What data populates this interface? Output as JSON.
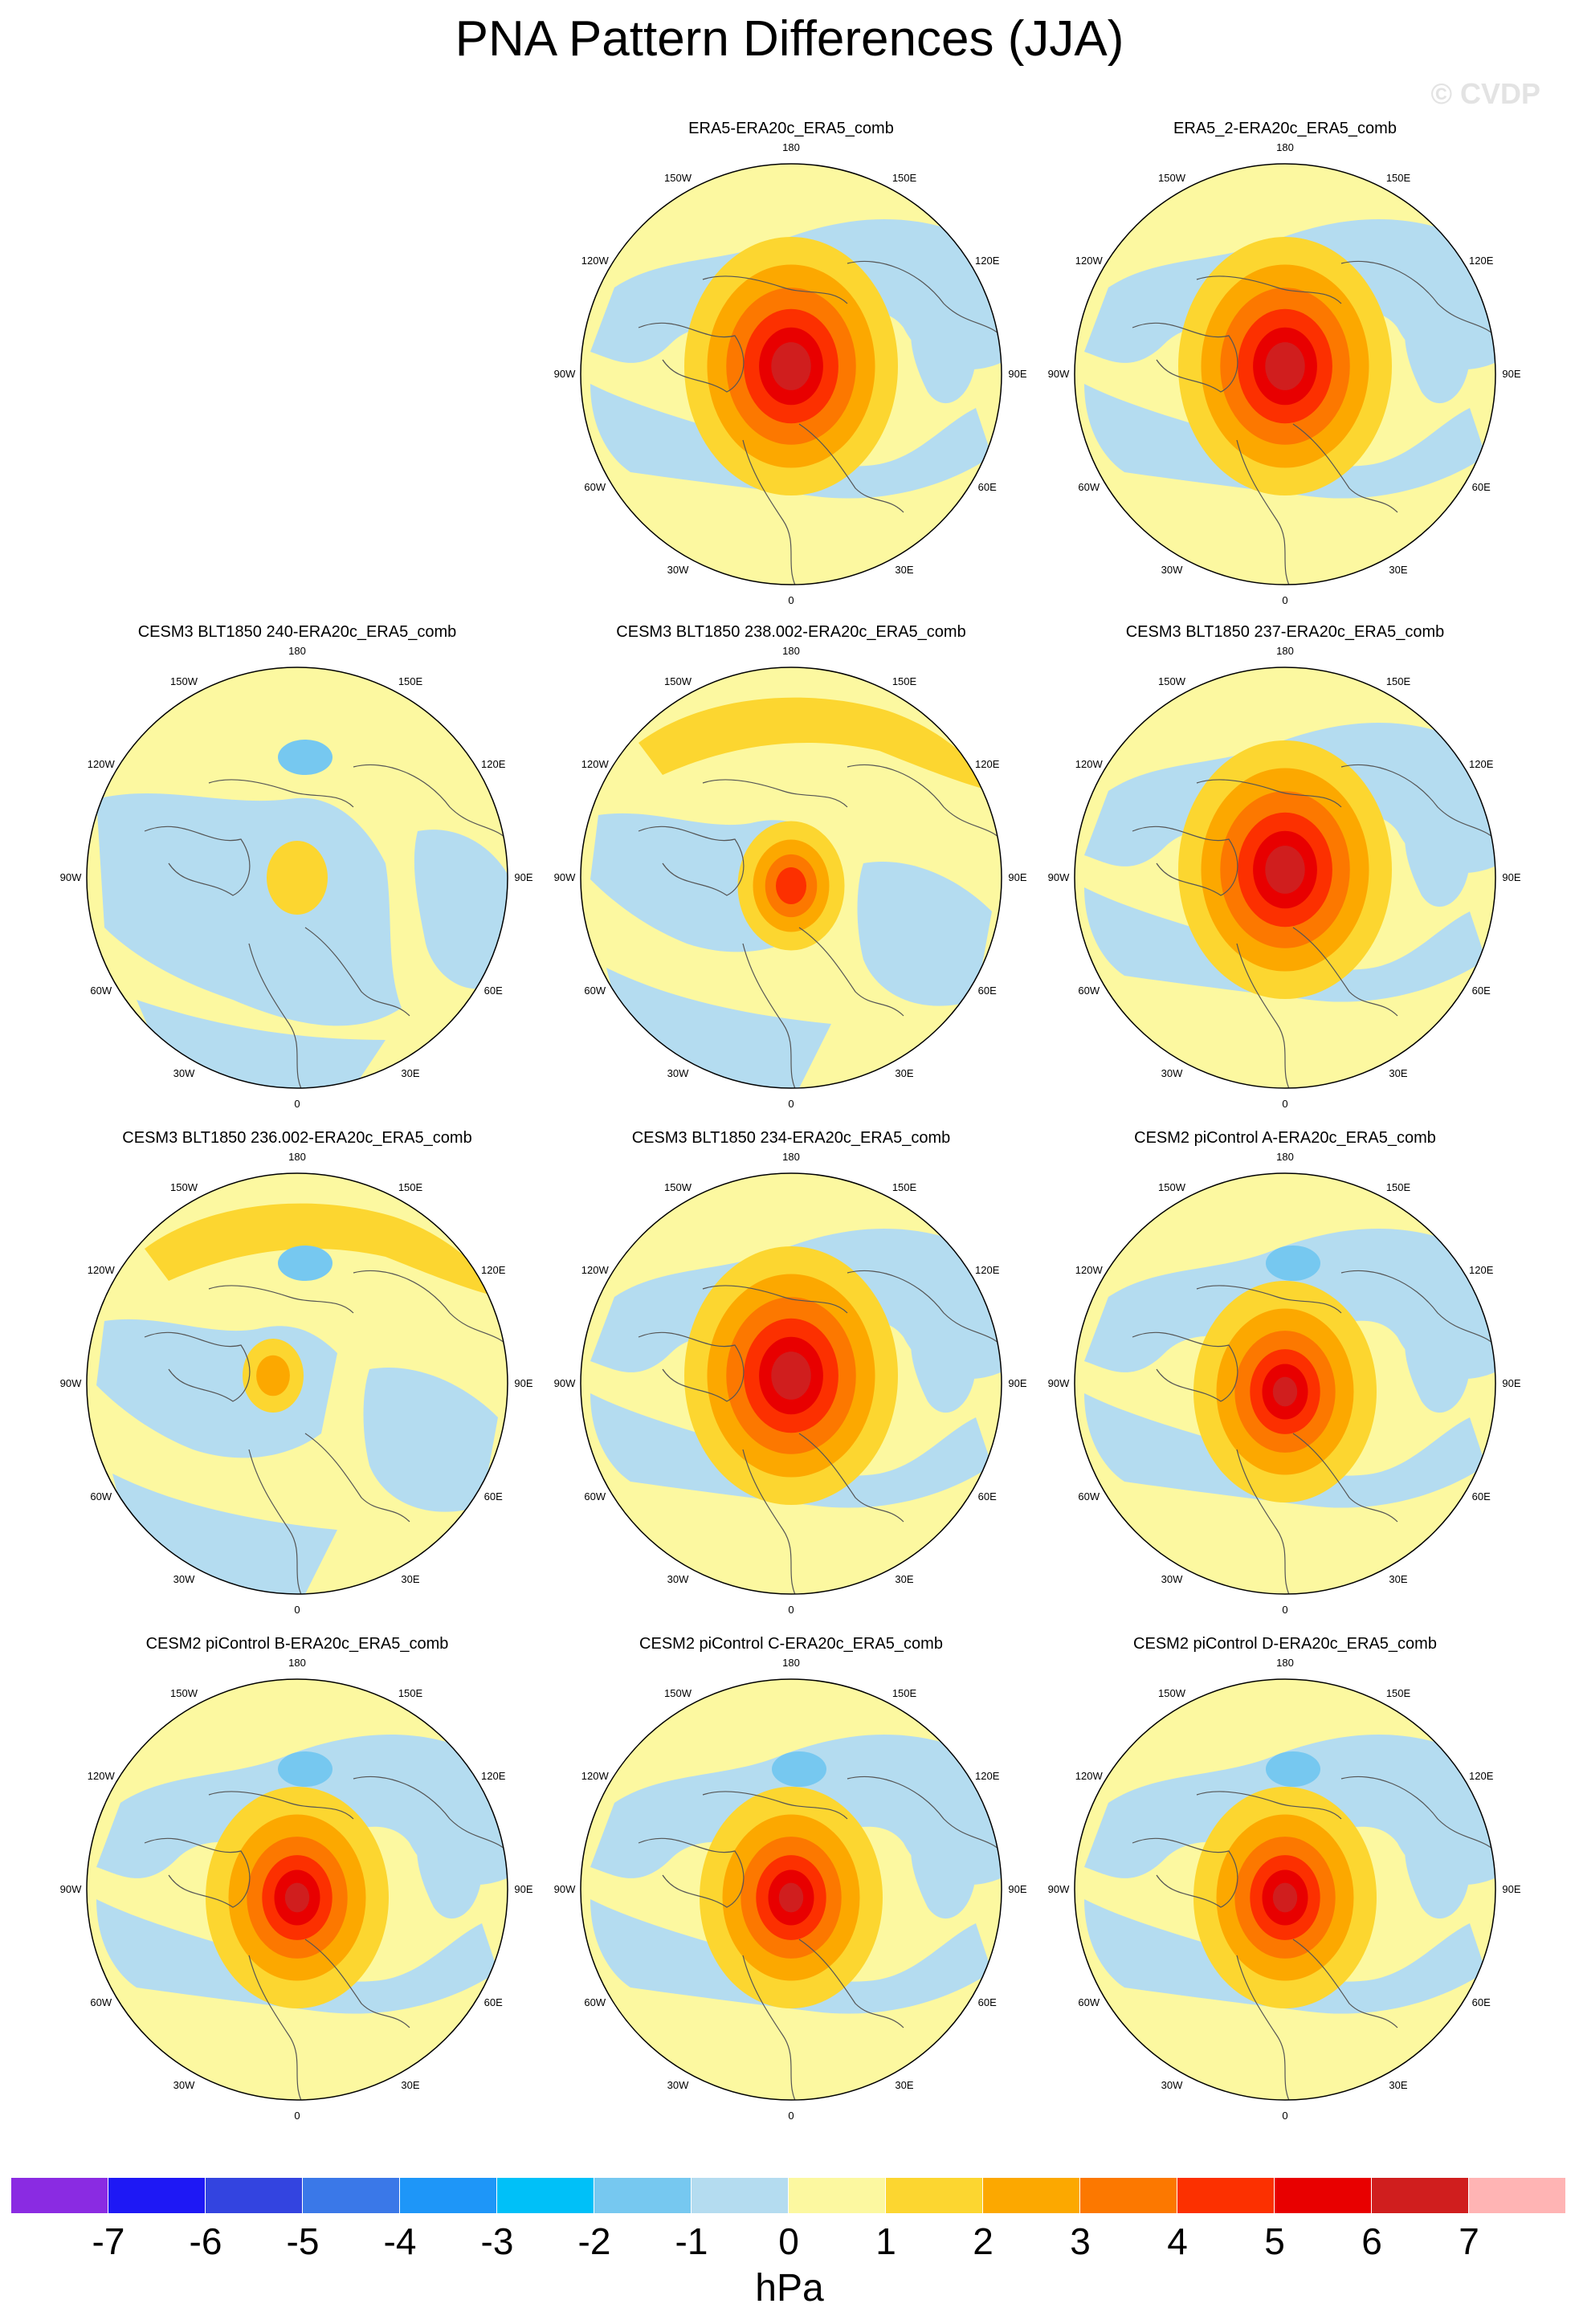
{
  "title": "PNA Pattern Differences (JJA)",
  "watermark": "© CVDP",
  "units": "hPa",
  "map_labels": {
    "top": "180",
    "bottom": "0",
    "left": "90W",
    "right": "90E",
    "upper_left_outer": "120W",
    "upper_left_inner": "150W",
    "upper_right_inner": "150E",
    "upper_right_outer": "120E",
    "lower_left_outer": "60W",
    "lower_left_inner": "30W",
    "lower_right_inner": "30E",
    "lower_right_outer": "60E"
  },
  "panels": [
    {
      "title": "ERA5-ERA20c_ERA5_comb",
      "pattern": "strong"
    },
    {
      "title": "ERA5_2-ERA20c_ERA5_comb",
      "pattern": "strong"
    },
    {
      "title": "CESM3 BLT1850 240-ERA20c_ERA5_comb",
      "pattern": "weak"
    },
    {
      "title": "CESM3 BLT1850 238.002-ERA20c_ERA5_comb",
      "pattern": "arc"
    },
    {
      "title": "CESM3 BLT1850 237-ERA20c_ERA5_comb",
      "pattern": "strong"
    },
    {
      "title": "CESM3 BLT1850 236.002-ERA20c_ERA5_comb",
      "pattern": "arc_weak"
    },
    {
      "title": "CESM3 BLT1850 234-ERA20c_ERA5_comb",
      "pattern": "strong"
    },
    {
      "title": "CESM2 piControl A-ERA20c_ERA5_comb",
      "pattern": "medium"
    },
    {
      "title": "CESM2 piControl B-ERA20c_ERA5_comb",
      "pattern": "medium"
    },
    {
      "title": "CESM2 piControl C-ERA20c_ERA5_comb",
      "pattern": "medium"
    },
    {
      "title": "CESM2 piControl D-ERA20c_ERA5_comb",
      "pattern": "medium"
    }
  ],
  "colorbar": {
    "labels": [
      "-7",
      "-6",
      "-5",
      "-4",
      "-3",
      "-2",
      "-1",
      "0",
      "1",
      "2",
      "3",
      "4",
      "5",
      "6",
      "7"
    ],
    "colors": [
      "#8a2be2",
      "#1e18f5",
      "#3344e0",
      "#3a78e8",
      "#1e96f8",
      "#00c0f8",
      "#76c8f0",
      "#b4dcf0",
      "#fcf8a0",
      "#fcd630",
      "#fca800",
      "#fc7800",
      "#fc3000",
      "#e80000",
      "#d01e1e",
      "#ffb4b4"
    ]
  }
}
